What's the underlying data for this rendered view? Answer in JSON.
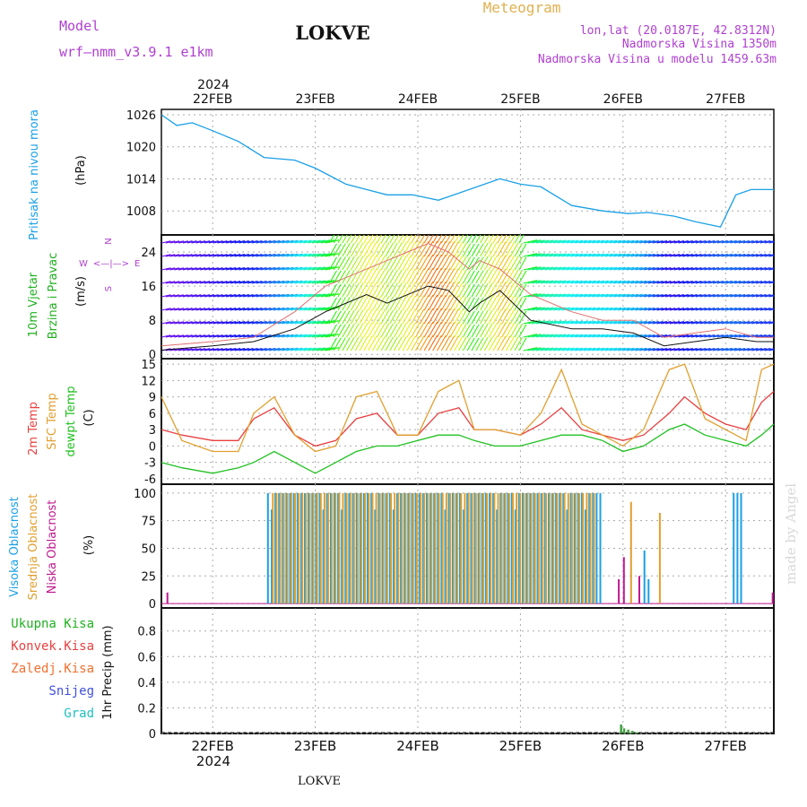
{
  "header": {
    "model_label": "Model",
    "model_name": "wrf—nmm_v3.9.1  e1km",
    "station": "LOKVE",
    "meteogram": "Meteogram",
    "coords": "lon,lat (20.0187E, 42.8312N)",
    "elevation": "Nadmorska Visina 1350m",
    "model_elevation": "Nadmorska Visina u modelu 1459.63m",
    "credit": "made by Angel",
    "footer_station": "LOKVE"
  },
  "colors": {
    "pressure": "#1aa0e6",
    "temp2m": "#e84040",
    "sfc_temp": "#e0a030",
    "dewpt": "#20c020",
    "cloud_high": "#1aa0e6",
    "cloud_mid": "#e0a030",
    "cloud_low": "#c01890",
    "purple_text": "#b040d0",
    "gold_text": "#e0b050"
  },
  "time_axis": {
    "year": "2024",
    "dates": [
      "22FEB",
      "23FEB",
      "24FEB",
      "25FEB",
      "26FEB",
      "27FEB"
    ],
    "range_days": [
      0,
      5.97
    ]
  },
  "panel_labels": {
    "pressure": [
      "Pritisak na nivou mora",
      "(hPa)"
    ],
    "wind": [
      "10m Vjetar",
      "Brzina i Pravac",
      "(m/s)"
    ],
    "wind_compass": [
      "N",
      "W",
      "E",
      "S"
    ],
    "temp": [
      "2m Temp",
      "SFC Temp",
      "dewpt Temp",
      "(C)"
    ],
    "cloud": [
      "Visoka Oblacnost",
      "Srednja Oblacnost",
      "Niska Oblacnost",
      "(%)"
    ],
    "precip_legend": [
      "Ukupna Kisa",
      "Konvek.Kisa",
      "Zaledj.Kisa",
      "Snijeg",
      "Grad"
    ],
    "precip_axis": "1hr Precip (mm)"
  },
  "chart_data": [
    {
      "type": "line",
      "name": "pressure",
      "yticks": [
        "1008",
        "1014",
        "1020",
        "1026"
      ],
      "ylim": [
        1003.5,
        1027
      ],
      "x": [
        0,
        0.15,
        0.3,
        0.5,
        0.75,
        1.0,
        1.3,
        1.5,
        1.8,
        2.0,
        2.2,
        2.45,
        2.7,
        3.0,
        3.3,
        3.5,
        3.7,
        4.0,
        4.3,
        4.55,
        4.75,
        5.0,
        5.2,
        5.45,
        5.6,
        5.75,
        5.97
      ],
      "values": [
        1026,
        1024,
        1024.5,
        1023,
        1021,
        1018,
        1017.5,
        1016,
        1013,
        1012,
        1011,
        1011,
        1010,
        1012,
        1014,
        1013,
        1012.5,
        1009,
        1008,
        1007.5,
        1007.7,
        1007,
        1006,
        1005,
        1011,
        1012,
        1012
      ]
    },
    {
      "type": "line",
      "name": "wind",
      "yticks": [
        "0",
        "8",
        "16",
        "24"
      ],
      "ylim": [
        -1,
        28
      ],
      "x": [
        0,
        0.5,
        0.9,
        1.3,
        1.6,
        2.0,
        2.2,
        2.4,
        2.6,
        2.8,
        3.0,
        3.1,
        3.3,
        3.6,
        4.0,
        4.3,
        4.6,
        4.9,
        5.2,
        5.5,
        5.8,
        5.97
      ],
      "values": [
        1,
        2,
        3,
        6,
        10,
        14,
        12,
        14,
        16,
        15,
        10,
        12,
        15,
        8,
        6,
        6,
        5,
        2,
        3,
        4,
        3,
        3
      ],
      "gust": [
        2,
        3,
        4,
        10,
        16,
        20,
        22,
        24,
        26,
        24,
        20,
        22,
        20,
        14,
        10,
        8,
        8,
        4,
        5,
        6,
        4,
        4
      ]
    },
    {
      "type": "line",
      "name": "temperature",
      "yticks": [
        "-6",
        "-3",
        "0",
        "3",
        "6",
        "9",
        "12",
        "15"
      ],
      "ylim": [
        -7,
        16
      ],
      "x": [
        0,
        0.2,
        0.5,
        0.75,
        0.9,
        1.1,
        1.3,
        1.5,
        1.7,
        1.9,
        2.1,
        2.3,
        2.5,
        2.7,
        2.9,
        3.05,
        3.25,
        3.5,
        3.7,
        3.9,
        4.1,
        4.3,
        4.5,
        4.7,
        4.95,
        5.1,
        5.3,
        5.5,
        5.7,
        5.85,
        5.97
      ],
      "series": [
        {
          "name": "2m Temp",
          "values": [
            3,
            2,
            1,
            1,
            5,
            7,
            2,
            0,
            1,
            5,
            6,
            2,
            2,
            6,
            7,
            3,
            3,
            2,
            4,
            7,
            3,
            2,
            1,
            2,
            6,
            9,
            6,
            4,
            3,
            8,
            10
          ]
        },
        {
          "name": "SFC Temp",
          "values": [
            9,
            1,
            -1,
            -1,
            6,
            9,
            2,
            -1,
            0,
            9,
            10,
            2,
            2,
            10,
            12,
            3,
            3,
            2,
            6,
            14,
            4,
            2,
            0,
            3,
            14,
            15,
            5,
            3,
            1,
            14,
            15
          ]
        },
        {
          "name": "dewpt Temp",
          "values": [
            -3,
            -4,
            -5,
            -4,
            -3,
            -1,
            -3,
            -5,
            -3,
            -1,
            0,
            0,
            1,
            2,
            2,
            1,
            0,
            0,
            1,
            2,
            2,
            1,
            -1,
            0,
            3,
            4,
            2,
            1,
            0,
            2,
            4
          ]
        }
      ]
    },
    {
      "type": "bar",
      "name": "cloudiness",
      "yticks": [
        "0",
        "25",
        "50",
        "75",
        "100"
      ],
      "ylim": [
        -4,
        108
      ],
      "segments": [
        {
          "layer": "Visoka Oblacnost",
          "x_start": 1.03,
          "x_end": 4.3,
          "value": 100
        },
        {
          "layer": "Srednja Oblacnost",
          "x_start": 1.06,
          "x_end": 4.2,
          "value": 100
        },
        {
          "layer": "Visoka Oblacnost",
          "x_start": 5.57,
          "x_end": 5.67,
          "value": 100
        }
      ],
      "spikes": [
        {
          "x": 0.05,
          "value": 10,
          "layer": "Niska Oblacnost"
        },
        {
          "x": 4.45,
          "value": 22,
          "layer": "Niska Oblacnost"
        },
        {
          "x": 4.5,
          "value": 42,
          "layer": "Niska Oblacnost"
        },
        {
          "x": 4.57,
          "value": 92,
          "layer": "Srednja Oblacnost"
        },
        {
          "x": 4.65,
          "value": 25,
          "layer": "Niska Oblacnost"
        },
        {
          "x": 4.7,
          "value": 48,
          "layer": "Visoka Oblacnost"
        },
        {
          "x": 4.74,
          "value": 22,
          "layer": "Visoka Oblacnost"
        },
        {
          "x": 4.85,
          "value": 82,
          "layer": "Srednja Oblacnost"
        },
        {
          "x": 5.95,
          "value": 10,
          "layer": "Niska Oblacnost"
        }
      ]
    },
    {
      "type": "bar",
      "name": "precipitation",
      "yticks": [
        "0",
        "0.2",
        "0.4",
        "0.6",
        "0.8"
      ],
      "ylim": [
        0,
        0.98
      ],
      "bars": [
        {
          "x": 4.47,
          "value": 0.07
        },
        {
          "x": 4.5,
          "value": 0.04
        },
        {
          "x": 4.54,
          "value": 0.03
        },
        {
          "x": 4.58,
          "value": 0.02
        },
        {
          "x": 4.63,
          "value": 0.01
        }
      ]
    }
  ]
}
